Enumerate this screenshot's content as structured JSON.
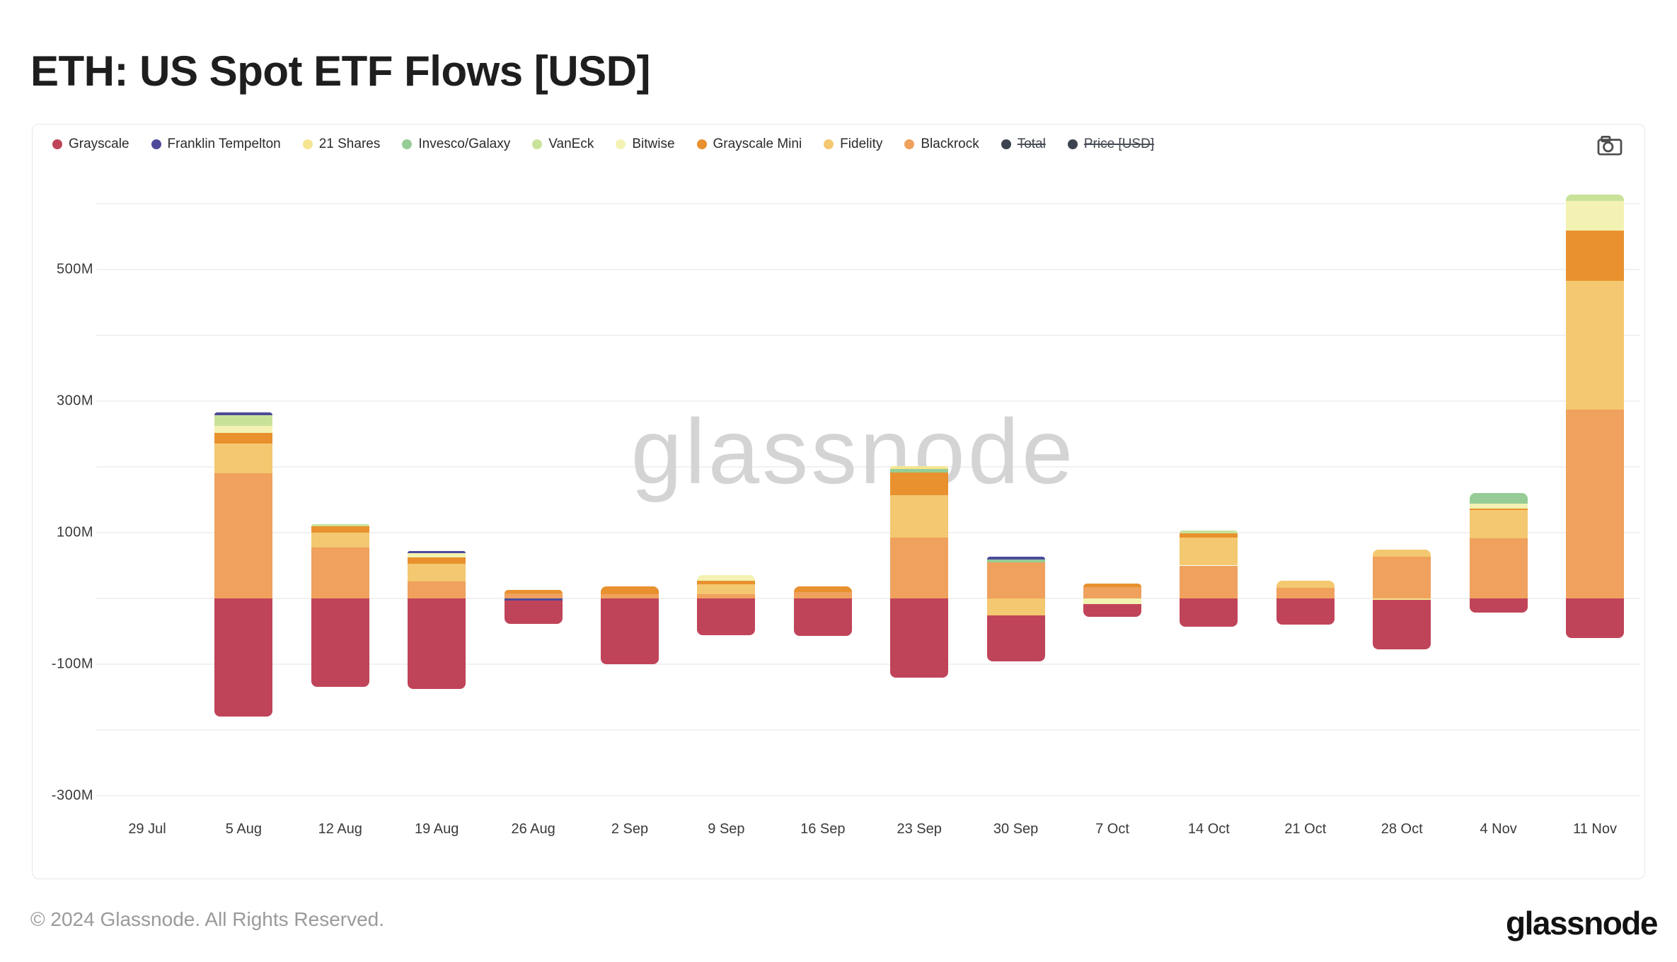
{
  "page": {
    "title": "ETH: US Spot ETF Flows [USD]",
    "watermark": "glassnode",
    "footer_copyright": "© 2024 Glassnode. All Rights Reserved.",
    "footer_logo": "glassnode"
  },
  "legend": {
    "items": [
      {
        "label": "Grayscale",
        "color": "#c04459",
        "struck": false
      },
      {
        "label": "Franklin Tempelton",
        "color": "#4e4a99",
        "struck": false
      },
      {
        "label": "21 Shares",
        "color": "#f5e591",
        "struck": false
      },
      {
        "label": "Invesco/Galaxy",
        "color": "#96cc96",
        "struck": false
      },
      {
        "label": "VanEck",
        "color": "#c9e29a",
        "struck": false
      },
      {
        "label": "Bitwise",
        "color": "#f3f2b2",
        "struck": false
      },
      {
        "label": "Grayscale Mini",
        "color": "#e8912e",
        "struck": false
      },
      {
        "label": "Fidelity",
        "color": "#f4c870",
        "struck": false
      },
      {
        "label": "Blackrock",
        "color": "#efa15d",
        "struck": false
      },
      {
        "label": "Total",
        "color": "#3d4250",
        "struck": true
      },
      {
        "label": "Price [USD]",
        "color": "#3d4250",
        "struck": true
      }
    ]
  },
  "axes": {
    "y_ticks": [
      {
        "value": 500,
        "label": "500M"
      },
      {
        "value": 300,
        "label": "300M"
      },
      {
        "value": 100,
        "label": "100M"
      },
      {
        "value": -100,
        "label": "-100M"
      },
      {
        "value": -300,
        "label": "-300M"
      }
    ],
    "gridline_values": [
      600,
      500,
      400,
      300,
      200,
      100,
      0,
      -100,
      -200,
      -300
    ]
  },
  "chart_data": {
    "type": "bar",
    "stacked": true,
    "title": "ETH: US Spot ETF Flows [USD]",
    "unit": "USD millions (weekly net flow)",
    "legend_position": "top",
    "grid": true,
    "ylim": [
      -350,
      660
    ],
    "categories": [
      "29 Jul",
      "5 Aug",
      "12 Aug",
      "19 Aug",
      "26 Aug",
      "2 Sep",
      "9 Sep",
      "16 Sep",
      "23 Sep",
      "30 Sep",
      "7 Oct",
      "14 Oct",
      "21 Oct",
      "28 Oct",
      "4 Nov",
      "11 Nov"
    ],
    "series": [
      {
        "name": "Blackrock",
        "color": "#efa15d",
        "values": [
          0,
          190,
          77,
          26,
          8,
          6,
          6,
          10,
          92,
          55,
          17,
          50,
          16,
          63,
          91,
          287
        ]
      },
      {
        "name": "Fidelity",
        "color": "#f4c870",
        "values": [
          0,
          45,
          23,
          27,
          0,
          0,
          15,
          0,
          65,
          -26,
          0,
          42,
          11,
          11,
          43,
          196
        ]
      },
      {
        "name": "Grayscale Mini",
        "color": "#e8912e",
        "values": [
          0,
          17,
          10,
          9,
          5,
          12,
          6,
          8,
          34,
          0,
          6,
          7,
          0,
          0,
          3,
          76
        ]
      },
      {
        "name": "Bitwise",
        "color": "#f3f2b2",
        "values": [
          0,
          10,
          0,
          7,
          0,
          0,
          9,
          0,
          0,
          0,
          -9,
          0,
          0,
          0,
          7,
          45
        ]
      },
      {
        "name": "VanEck",
        "color": "#c9e29a",
        "values": [
          0,
          16,
          3,
          0,
          0,
          0,
          0,
          0,
          0,
          0,
          0,
          4,
          0,
          0,
          0,
          10
        ]
      },
      {
        "name": "Invesco/Galaxy",
        "color": "#96cc96",
        "values": [
          0,
          0,
          0,
          0,
          0,
          0,
          0,
          0,
          6,
          4,
          0,
          0,
          0,
          0,
          16,
          0
        ]
      },
      {
        "name": "21 Shares",
        "color": "#f5e591",
        "values": [
          0,
          0,
          0,
          0,
          0,
          0,
          0,
          0,
          4,
          0,
          0,
          0,
          0,
          -2,
          0,
          0
        ]
      },
      {
        "name": "Franklin Tempelton",
        "color": "#4e4a99",
        "values": [
          0,
          5,
          0,
          3,
          -3,
          0,
          0,
          0,
          0,
          4,
          0,
          0,
          0,
          0,
          0,
          0
        ]
      },
      {
        "name": "Grayscale",
        "color": "#c04459",
        "values": [
          0,
          -180,
          -134,
          -138,
          -36,
          -100,
          -56,
          -57,
          -120,
          -70,
          -19,
          -43,
          -40,
          -75,
          -22,
          -60
        ]
      }
    ]
  }
}
